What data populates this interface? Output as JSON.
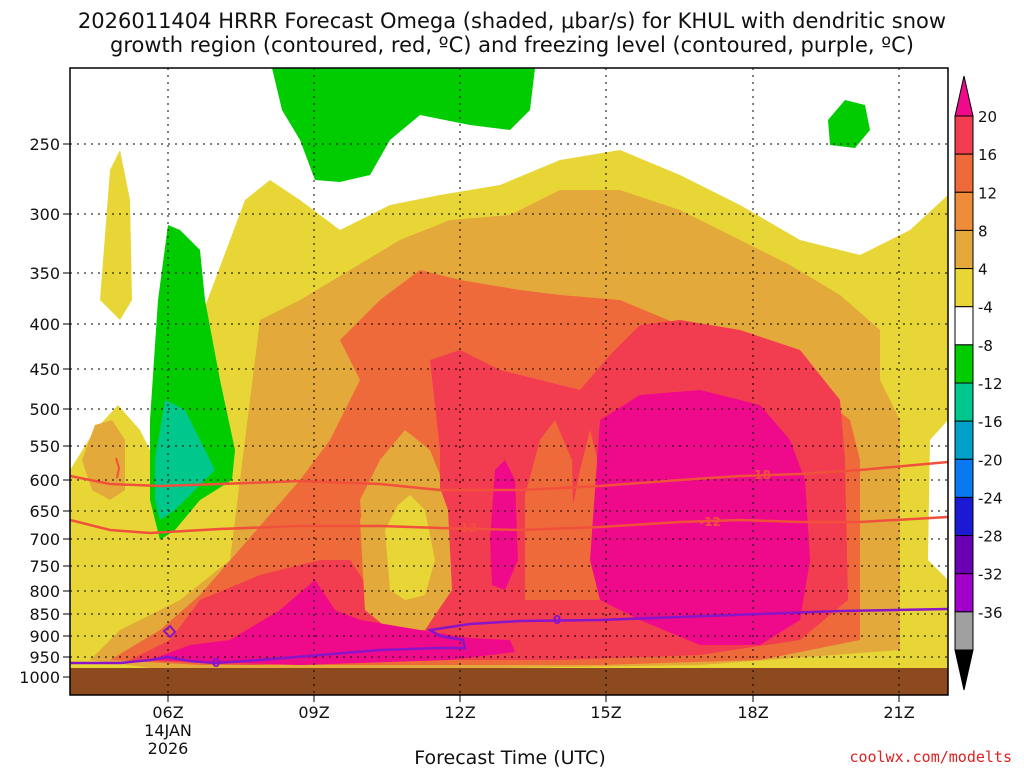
{
  "chart_data": {
    "type": "heatmap",
    "title_line1": "2026011404 HRRR Forecast Omega (shaded, μbar/s) for KHUL with dendritic snow",
    "title_line2": "growth region (contoured, red, ºC) and freezing level (contoured, purple, ºC)",
    "xlabel": "Forecast Time (UTC)",
    "credit": "coolwx.com/modelts",
    "x_ticks": [
      {
        "label": "06Z",
        "sub1": "14JAN",
        "sub2": "2026"
      },
      {
        "label": "09Z"
      },
      {
        "label": "12Z"
      },
      {
        "label": "15Z"
      },
      {
        "label": "18Z"
      },
      {
        "label": "21Z"
      }
    ],
    "y_ticks": [
      "250",
      "300",
      "350",
      "400",
      "450",
      "500",
      "550",
      "600",
      "650",
      "700",
      "750",
      "800",
      "850",
      "900",
      "950",
      "1000"
    ],
    "colorbar": {
      "labels": [
        "20",
        "16",
        "12",
        "8",
        "4",
        "-4",
        "-8",
        "-12",
        "-16",
        "-20",
        "-24",
        "-28",
        "-32",
        "-36"
      ],
      "colors": [
        "#ee0a8a",
        "#f23c50",
        "#ef6a3a",
        "#ee8c3a",
        "#e3a93a",
        "#e8d636",
        "#ffffff",
        "#00cc00",
        "#00c88c",
        "#00a0c8",
        "#0a78f0",
        "#1a1ad2",
        "#6a00b4",
        "#a000c8",
        "#a0a0a0",
        "#000000"
      ]
    },
    "contour_labels": {
      "dgz_upper": "-18",
      "dgz_lower": "-12",
      "freezing": "0"
    },
    "colors": {
      "ground": "#8c4a1e",
      "dgz_contour": "#f0503c",
      "freezing_contour": "#8a14c8"
    }
  }
}
